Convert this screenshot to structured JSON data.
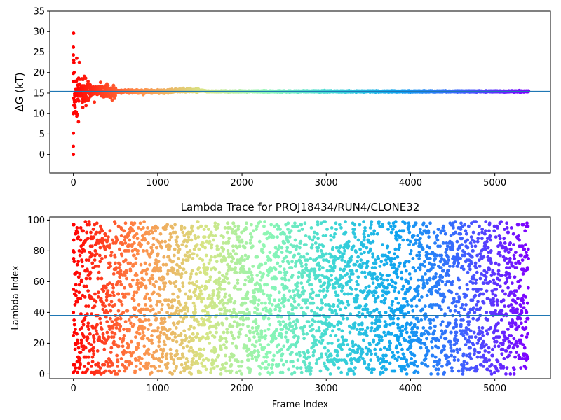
{
  "chart_data": [
    {
      "type": "scatter",
      "title": "",
      "xlabel": "",
      "ylabel": "ΔG (kT)",
      "xlim": [
        -280,
        5660
      ],
      "ylim": [
        -4.5,
        35
      ],
      "xticks": [
        0,
        1000,
        2000,
        3000,
        4000,
        5000
      ],
      "yticks": [
        0,
        5,
        10,
        15,
        20,
        25,
        30,
        35
      ],
      "grid": false,
      "colormap": [
        "#ff0000",
        "#ff8b48",
        "#d7e584",
        "#8cf7b5",
        "#3ed7d5",
        "#0ea3f0",
        "#3f61ff",
        "#7f00ff"
      ],
      "reference_line": {
        "y": 15.4,
        "color": "#1f77b4"
      },
      "series": [
        {
          "x_range": [
            0,
            5400
          ],
          "converged_value": 15.4,
          "sample_points": [
            {
              "x": 0,
              "y": 0
            },
            {
              "x": 0,
              "y": 2
            },
            {
              "x": 0,
              "y": 5.2
            },
            {
              "x": 0,
              "y": 10
            },
            {
              "x": 0,
              "y": 19.8
            },
            {
              "x": 0,
              "y": 24.3
            },
            {
              "x": 0,
              "y": 26.2
            },
            {
              "x": 2,
              "y": 29.6
            },
            {
              "x": 5,
              "y": 12
            },
            {
              "x": 10,
              "y": 20
            },
            {
              "x": 20,
              "y": 11.5
            },
            {
              "x": 30,
              "y": 15
            },
            {
              "x": 40,
              "y": 23.5
            },
            {
              "x": 60,
              "y": 8
            },
            {
              "x": 70,
              "y": 22.5
            },
            {
              "x": 100,
              "y": 18.5
            },
            {
              "x": 150,
              "y": 13.5
            },
            {
              "x": 200,
              "y": 17
            },
            {
              "x": 250,
              "y": 12.8
            },
            {
              "x": 300,
              "y": 16.5
            },
            {
              "x": 400,
              "y": 14.2
            },
            {
              "x": 500,
              "y": 16.2
            },
            {
              "x": 700,
              "y": 15
            },
            {
              "x": 1000,
              "y": 15.8
            },
            {
              "x": 1350,
              "y": 16.1
            },
            {
              "x": 2000,
              "y": 15.5
            },
            {
              "x": 3000,
              "y": 15.4
            },
            {
              "x": 4000,
              "y": 15.4
            },
            {
              "x": 5400,
              "y": 15.4
            }
          ]
        }
      ]
    },
    {
      "type": "scatter",
      "title": "Lambda Trace for PROJ18434/RUN4/CLONE32",
      "xlabel": "Frame Index",
      "ylabel": "Lambda Index",
      "xlim": [
        -280,
        5660
      ],
      "ylim": [
        -3,
        102
      ],
      "xticks": [
        0,
        1000,
        2000,
        3000,
        4000,
        5000
      ],
      "yticks": [
        0,
        20,
        40,
        60,
        80,
        100
      ],
      "grid": false,
      "colormap": [
        "#ff0000",
        "#ff8b48",
        "#d7e584",
        "#8cf7b5",
        "#3ed7d5",
        "#0ea3f0",
        "#3f61ff",
        "#7f00ff"
      ],
      "reference_line": {
        "y": 38,
        "color": "#1f77b4"
      },
      "series": [
        {
          "x_range": [
            0,
            5400
          ],
          "y_range": [
            0,
            99
          ],
          "sample_points": [
            {
              "x": 0,
              "y": 97
            },
            {
              "x": 0,
              "y": 55
            },
            {
              "x": 0,
              "y": 40
            },
            {
              "x": 0,
              "y": 25
            },
            {
              "x": 0,
              "y": 6
            },
            {
              "x": 0,
              "y": 1
            },
            {
              "x": 50,
              "y": 88
            },
            {
              "x": 100,
              "y": 30
            },
            {
              "x": 300,
              "y": 70
            },
            {
              "x": 600,
              "y": 15
            },
            {
              "x": 1000,
              "y": 95
            },
            {
              "x": 1500,
              "y": 50
            },
            {
              "x": 2000,
              "y": 8
            },
            {
              "x": 2500,
              "y": 75
            },
            {
              "x": 3000,
              "y": 35
            },
            {
              "x": 3500,
              "y": 90
            },
            {
              "x": 4000,
              "y": 20
            },
            {
              "x": 4500,
              "y": 60
            },
            {
              "x": 5000,
              "y": 5
            },
            {
              "x": 5300,
              "y": 45
            }
          ]
        }
      ]
    }
  ]
}
